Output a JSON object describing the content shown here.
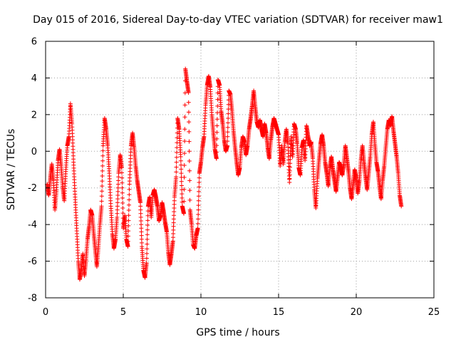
{
  "chart_data": {
    "type": "scatter",
    "title": "Day 015 of 2016, Sidereal Day-to-day VTEC variation (SDTVAR) for receiver maw1",
    "xlabel": "GPS time / hours",
    "ylabel": "SDTVAR / TECUs",
    "xlim": [
      0,
      25
    ],
    "ylim": [
      -8,
      6
    ],
    "xticks": [
      "0",
      "5",
      "10",
      "15",
      "20",
      "25"
    ],
    "yticks": [
      "-8",
      "-6",
      "-4",
      "-2",
      "0",
      "2",
      "4",
      "6"
    ],
    "grid": true,
    "marker": "plus",
    "series": [
      {
        "name": "maw1",
        "color": "#ff0000",
        "trace": [
          [
            0.0,
            -1.2
          ],
          [
            0.1,
            -1.8
          ],
          [
            0.2,
            -2.4
          ],
          [
            0.3,
            -1.5
          ],
          [
            0.4,
            -0.7
          ],
          [
            0.5,
            -1.6
          ],
          [
            0.6,
            -3.2
          ],
          [
            0.7,
            -2.1
          ],
          [
            0.8,
            -0.5
          ],
          [
            0.9,
            0.1
          ],
          [
            1.0,
            -0.8
          ],
          [
            1.1,
            -1.9
          ],
          [
            1.2,
            -2.7
          ],
          [
            1.3,
            -1.1
          ],
          [
            1.4,
            0.3
          ],
          [
            1.5,
            0.8
          ],
          [
            1.6,
            2.6
          ],
          [
            1.7,
            1.5
          ],
          [
            1.8,
            -0.6
          ],
          [
            1.9,
            -2.5
          ],
          [
            2.0,
            -4.2
          ],
          [
            2.1,
            -6.0
          ],
          [
            2.2,
            -7.0
          ],
          [
            2.3,
            -6.4
          ],
          [
            2.4,
            -5.6
          ],
          [
            2.5,
            -6.8
          ],
          [
            2.6,
            -5.9
          ],
          [
            2.7,
            -4.8
          ],
          [
            2.8,
            -4.1
          ],
          [
            2.9,
            -3.2
          ],
          [
            3.0,
            -3.5
          ],
          [
            3.1,
            -4.5
          ],
          [
            3.2,
            -5.4
          ],
          [
            3.3,
            -6.3
          ],
          [
            3.4,
            -5.2
          ],
          [
            3.5,
            -4.0
          ],
          [
            3.6,
            -3.0
          ],
          [
            3.7,
            0.3
          ],
          [
            3.8,
            1.8
          ],
          [
            3.9,
            1.2
          ],
          [
            4.0,
            0.3
          ],
          [
            4.1,
            -1.2
          ],
          [
            4.2,
            -3.0
          ],
          [
            4.3,
            -4.5
          ],
          [
            4.4,
            -5.3
          ],
          [
            4.5,
            -4.8
          ],
          [
            4.6,
            -3.6
          ],
          [
            4.7,
            -1.2
          ],
          [
            4.8,
            -0.2
          ],
          [
            4.9,
            -0.9
          ],
          [
            5.0,
            -4.2
          ],
          [
            5.1,
            -3.5
          ],
          [
            5.2,
            -4.8
          ],
          [
            5.3,
            -5.2
          ],
          [
            5.4,
            -1.8
          ],
          [
            5.5,
            0.3
          ],
          [
            5.6,
            1.0
          ],
          [
            5.7,
            0.2
          ],
          [
            5.8,
            -0.8
          ],
          [
            5.9,
            -1.6
          ],
          [
            6.0,
            -2.2
          ],
          [
            6.1,
            -2.8
          ],
          [
            6.2,
            -5.2
          ],
          [
            6.3,
            -6.5
          ],
          [
            6.4,
            -6.9
          ],
          [
            6.5,
            -6.1
          ],
          [
            6.6,
            -3.0
          ],
          [
            6.7,
            -2.5
          ],
          [
            6.8,
            -3.6
          ],
          [
            6.9,
            -2.4
          ],
          [
            7.0,
            -2.1
          ],
          [
            7.1,
            -2.5
          ],
          [
            7.2,
            -3.0
          ],
          [
            7.3,
            -3.8
          ],
          [
            7.4,
            -3.5
          ],
          [
            7.5,
            -2.8
          ],
          [
            7.6,
            -3.3
          ],
          [
            7.7,
            -3.9
          ],
          [
            7.8,
            -4.4
          ],
          [
            7.9,
            -5.5
          ],
          [
            8.0,
            -6.2
          ],
          [
            8.1,
            -5.6
          ],
          [
            8.2,
            -4.9
          ],
          [
            8.3,
            -2.5
          ],
          [
            8.4,
            -1.4
          ],
          [
            8.5,
            1.8
          ],
          [
            8.6,
            1.2
          ],
          [
            8.7,
            -0.3
          ],
          [
            8.8,
            -3.0
          ],
          [
            8.9,
            -3.4
          ],
          [
            9.0,
            4.5
          ],
          [
            9.1,
            3.8
          ],
          [
            9.2,
            3.2
          ],
          [
            9.3,
            -3.2
          ],
          [
            9.4,
            -4.0
          ],
          [
            9.5,
            -5.1
          ],
          [
            9.6,
            -5.3
          ],
          [
            9.7,
            -4.6
          ],
          [
            9.8,
            -4.2
          ],
          [
            9.9,
            -1.2
          ],
          [
            10.0,
            -0.6
          ],
          [
            10.1,
            0.2
          ],
          [
            10.2,
            0.8
          ],
          [
            10.3,
            2.5
          ],
          [
            10.4,
            3.6
          ],
          [
            10.5,
            4.1
          ],
          [
            10.6,
            3.5
          ],
          [
            10.7,
            2.0
          ],
          [
            10.8,
            1.0
          ],
          [
            10.9,
            0.1
          ],
          [
            11.0,
            -0.4
          ],
          [
            11.1,
            3.9
          ],
          [
            11.2,
            3.6
          ],
          [
            11.3,
            2.2
          ],
          [
            11.4,
            1.5
          ],
          [
            11.5,
            0.6
          ],
          [
            11.6,
            0.0
          ],
          [
            11.7,
            0.3
          ],
          [
            11.8,
            3.3
          ],
          [
            11.9,
            3.1
          ],
          [
            12.0,
            2.2
          ],
          [
            12.1,
            1.1
          ],
          [
            12.2,
            0.2
          ],
          [
            12.3,
            -0.6
          ],
          [
            12.4,
            -1.3
          ],
          [
            12.5,
            -0.9
          ],
          [
            12.6,
            0.2
          ],
          [
            12.7,
            0.8
          ],
          [
            12.8,
            0.5
          ],
          [
            12.9,
            -0.2
          ],
          [
            13.0,
            0.3
          ],
          [
            13.1,
            1.2
          ],
          [
            13.2,
            1.8
          ],
          [
            13.3,
            2.5
          ],
          [
            13.4,
            3.3
          ],
          [
            13.5,
            2.4
          ],
          [
            13.6,
            1.6
          ],
          [
            13.7,
            1.3
          ],
          [
            13.8,
            1.7
          ],
          [
            13.9,
            1.2
          ],
          [
            14.0,
            0.8
          ],
          [
            14.1,
            1.5
          ],
          [
            14.2,
            1.0
          ],
          [
            14.3,
            0.2
          ],
          [
            14.4,
            -0.4
          ],
          [
            14.5,
            0.6
          ],
          [
            14.6,
            1.3
          ],
          [
            14.7,
            1.8
          ],
          [
            14.8,
            1.5
          ],
          [
            14.9,
            1.2
          ],
          [
            15.0,
            0.9
          ],
          [
            15.1,
            -0.8
          ],
          [
            15.2,
            0.3
          ],
          [
            15.3,
            -0.7
          ],
          [
            15.4,
            0.5
          ],
          [
            15.5,
            1.2
          ],
          [
            15.6,
            0.4
          ],
          [
            15.7,
            -1.7
          ],
          [
            15.8,
            0.8
          ],
          [
            15.9,
            -0.3
          ],
          [
            16.0,
            1.5
          ],
          [
            16.1,
            1.2
          ],
          [
            16.2,
            0.4
          ],
          [
            16.3,
            -0.9
          ],
          [
            16.4,
            -1.3
          ],
          [
            16.5,
            0.2
          ],
          [
            16.6,
            0.6
          ],
          [
            16.7,
            -0.5
          ],
          [
            16.8,
            1.4
          ],
          [
            16.9,
            0.8
          ],
          [
            17.0,
            0.3
          ],
          [
            17.1,
            0.5
          ],
          [
            17.2,
            -0.4
          ],
          [
            17.3,
            -2.1
          ],
          [
            17.4,
            -3.1
          ],
          [
            17.5,
            -1.5
          ],
          [
            17.6,
            -0.5
          ],
          [
            17.7,
            0.4
          ],
          [
            17.8,
            0.9
          ],
          [
            17.9,
            0.3
          ],
          [
            18.0,
            -0.6
          ],
          [
            18.1,
            -1.2
          ],
          [
            18.2,
            -1.9
          ],
          [
            18.3,
            -0.9
          ],
          [
            18.4,
            -0.3
          ],
          [
            18.5,
            -1.0
          ],
          [
            18.6,
            -1.6
          ],
          [
            18.7,
            -2.2
          ],
          [
            18.8,
            -1.4
          ],
          [
            18.9,
            -0.6
          ],
          [
            19.0,
            -0.9
          ],
          [
            19.1,
            -1.3
          ],
          [
            19.2,
            -0.7
          ],
          [
            19.3,
            0.3
          ],
          [
            19.4,
            -0.4
          ],
          [
            19.5,
            -1.1
          ],
          [
            19.6,
            -2.0
          ],
          [
            19.7,
            -2.6
          ],
          [
            19.8,
            -1.8
          ],
          [
            19.9,
            -1.0
          ],
          [
            20.0,
            -1.5
          ],
          [
            20.1,
            -2.3
          ],
          [
            20.2,
            -1.6
          ],
          [
            20.3,
            -0.5
          ],
          [
            20.4,
            0.3
          ],
          [
            20.5,
            -0.6
          ],
          [
            20.6,
            -1.4
          ],
          [
            20.7,
            -2.1
          ],
          [
            20.8,
            -1.2
          ],
          [
            20.9,
            -0.3
          ],
          [
            21.0,
            0.9
          ],
          [
            21.1,
            1.6
          ],
          [
            21.2,
            0.4
          ],
          [
            21.3,
            -0.6
          ],
          [
            21.4,
            -1.1
          ],
          [
            21.5,
            -1.9
          ],
          [
            21.6,
            -2.6
          ],
          [
            21.7,
            -1.6
          ],
          [
            21.8,
            -0.8
          ],
          [
            21.9,
            0.2
          ],
          [
            22.0,
            1.2
          ],
          [
            22.1,
            1.7
          ],
          [
            22.2,
            1.4
          ],
          [
            22.3,
            1.9
          ],
          [
            22.4,
            1.1
          ],
          [
            22.5,
            0.4
          ],
          [
            22.6,
            -0.3
          ],
          [
            22.7,
            -1.2
          ],
          [
            22.8,
            -2.4
          ],
          [
            22.9,
            -3.0
          ]
        ]
      }
    ]
  }
}
